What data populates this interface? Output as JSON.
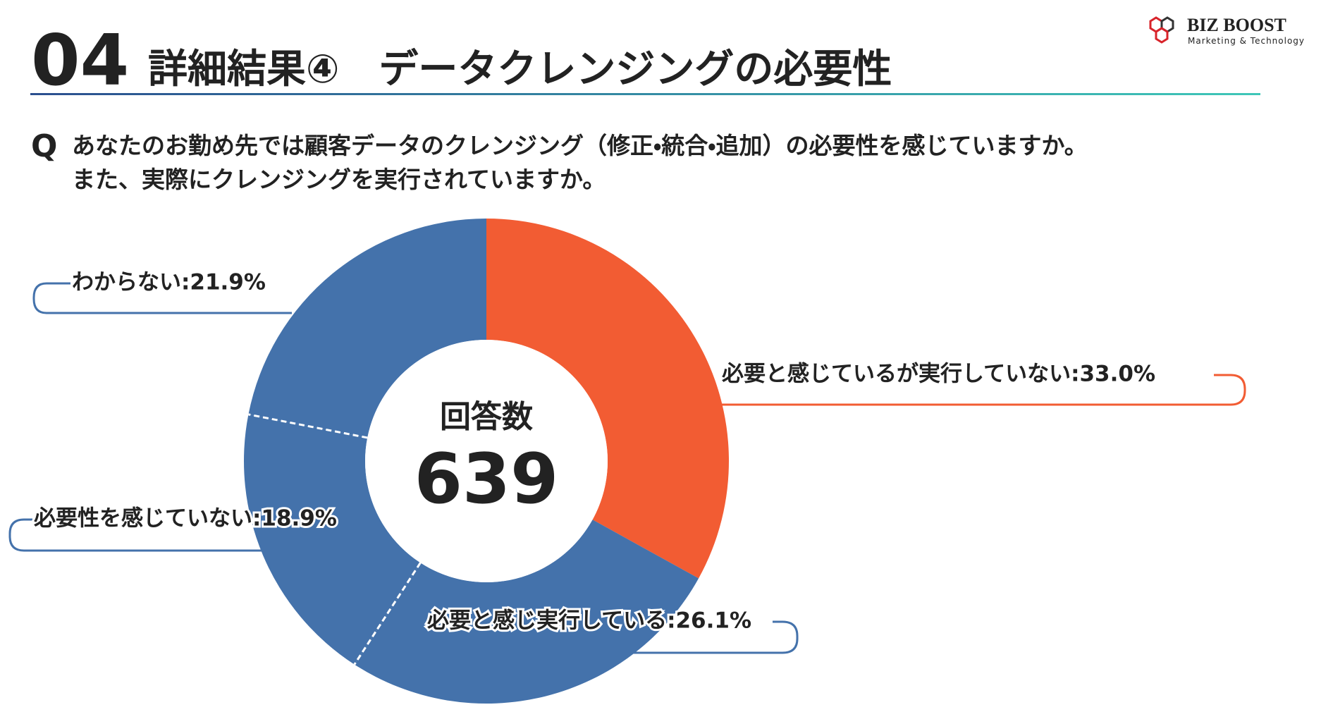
{
  "header": {
    "number": "04",
    "title": "詳細結果④　データクレンジングの必要性"
  },
  "logo": {
    "name": "BIZ BOOST",
    "tagline": "Marketing & Technology"
  },
  "question": {
    "marker": "Q",
    "lines": [
      "あなたのお勤め先では顧客データのクレンジング（修正・統合・追加）の必要性を感じていますか。",
      "また、実際にクレンジングを実行されていますか。"
    ]
  },
  "chart_data": {
    "type": "donut",
    "values": [
      33.0,
      26.1,
      18.9,
      21.9
    ],
    "value_labels": [
      "必要と感じているが実行していない:33.0%",
      "必要と感じ実行している:26.1%",
      "必要性を感じていない:18.9%",
      "わからない:21.9%"
    ],
    "colors": [
      "#f25c33",
      "#4472ab",
      "#4472ab",
      "#4472ab"
    ],
    "center_title": "回答数",
    "center_value": 639
  }
}
